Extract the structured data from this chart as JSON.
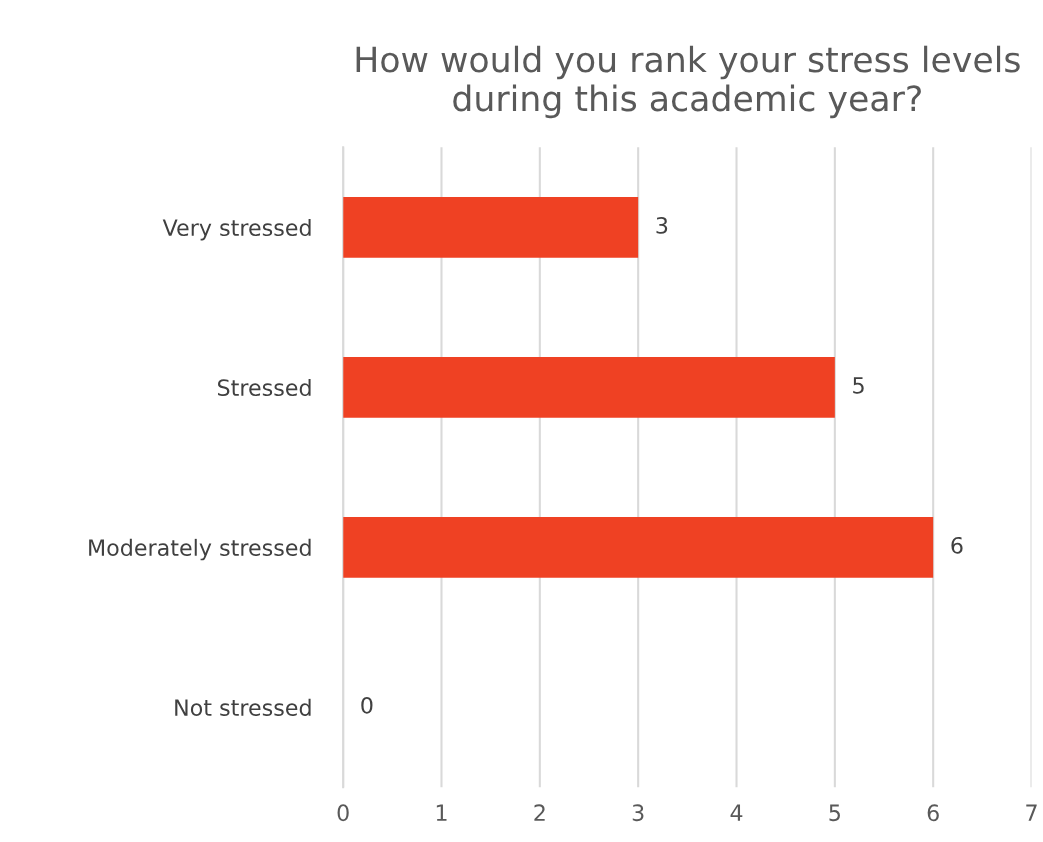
{
  "chart_data": {
    "type": "bar",
    "orientation": "horizontal",
    "title": "How would you rank your stress levels during this academic year?",
    "categories": [
      "Very stressed",
      "Stressed",
      "Moderately stressed",
      "Not stressed"
    ],
    "values": [
      3,
      5,
      6,
      0
    ],
    "color": "#ef4123",
    "xlim": [
      0,
      7
    ],
    "xticks": [
      0,
      1,
      2,
      3,
      4,
      5,
      6,
      7
    ],
    "grid": "x",
    "data_labels": true
  }
}
